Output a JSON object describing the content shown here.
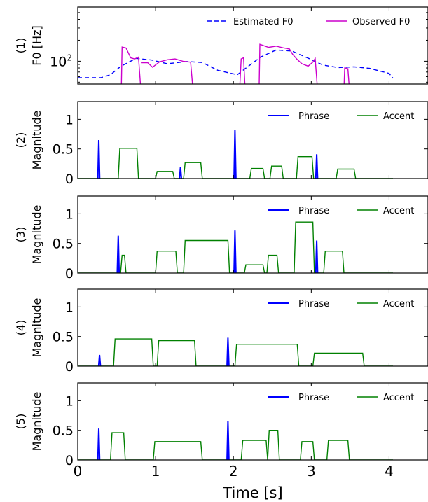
{
  "chart_data": [
    {
      "id": "p1",
      "type": "line",
      "ylabel": "(1)\nF0 [Hz]",
      "yscale": "log",
      "ylim": [
        47,
        600
      ],
      "yticks": [
        {
          "value": 100,
          "label": "10^2"
        }
      ],
      "xlim": [
        0,
        4.5
      ],
      "series": [
        {
          "name": "Estimated F0",
          "color": "#0000ff",
          "dash": true,
          "segments": [
            [
              [
                0.0,
                58
              ],
              [
                0.3,
                58
              ],
              [
                0.42,
                64
              ],
              [
                0.55,
                84
              ],
              [
                0.75,
                110
              ],
              [
                0.95,
                104
              ],
              [
                1.15,
                92
              ],
              [
                1.4,
                99
              ],
              [
                1.6,
                96
              ],
              [
                1.8,
                74
              ],
              [
                2.05,
                64
              ],
              [
                2.15,
                78
              ],
              [
                2.35,
                115
              ],
              [
                2.55,
                145
              ],
              [
                2.75,
                140
              ],
              [
                2.95,
                112
              ],
              [
                3.15,
                88
              ],
              [
                3.35,
                81
              ],
              [
                3.55,
                83
              ],
              [
                3.75,
                79
              ],
              [
                4.0,
                67
              ],
              [
                4.05,
                57
              ]
            ]
          ]
        },
        {
          "name": "Observed F0",
          "color": "#cc00cc",
          "dash": false,
          "segments": [
            [
              [
                0.56,
                40
              ],
              [
                0.57,
                160
              ],
              [
                0.62,
                155
              ],
              [
                0.68,
                112
              ],
              [
                0.73,
                108
              ],
              [
                0.78,
                115
              ],
              [
                0.81,
                40
              ]
            ],
            [
              [
                0.82,
                95
              ],
              [
                0.9,
                95
              ],
              [
                0.96,
                82
              ],
              [
                1.05,
                98
              ],
              [
                1.15,
                105
              ],
              [
                1.25,
                108
              ],
              [
                1.35,
                100
              ],
              [
                1.45,
                97
              ],
              [
                1.48,
                40
              ]
            ],
            [
              [
                2.08,
                40
              ],
              [
                2.1,
                108
              ],
              [
                2.13,
                112
              ],
              [
                2.15,
                40
              ]
            ],
            [
              [
                2.33,
                40
              ],
              [
                2.34,
                175
              ],
              [
                2.45,
                158
              ],
              [
                2.55,
                165
              ],
              [
                2.65,
                155
              ],
              [
                2.72,
                150
              ],
              [
                2.76,
                126
              ],
              [
                2.82,
                106
              ],
              [
                2.88,
                92
              ],
              [
                2.96,
                85
              ],
              [
                3.02,
                97
              ],
              [
                3.05,
                110
              ],
              [
                3.08,
                40
              ]
            ],
            [
              [
                3.42,
                40
              ],
              [
                3.43,
                80
              ],
              [
                3.47,
                78
              ],
              [
                3.49,
                40
              ]
            ]
          ]
        }
      ]
    },
    {
      "id": "p2",
      "type": "line",
      "ylabel": "(2)\nMagnitude",
      "ylim": [
        0,
        1.3
      ],
      "yticks": [
        {
          "value": 0,
          "label": "0"
        },
        {
          "value": 0.5,
          "label": "0.5"
        },
        {
          "value": 1,
          "label": "1"
        }
      ],
      "xlim": [
        0,
        4.5
      ],
      "phrase": [
        {
          "t": 0.27,
          "v": 0.65
        },
        {
          "t": 1.32,
          "v": 0.2
        },
        {
          "t": 2.02,
          "v": 0.82
        },
        {
          "t": 3.07,
          "v": 0.41
        }
      ],
      "accent": [
        {
          "t0": 0.52,
          "t1": 0.78,
          "v": 0.51
        },
        {
          "t0": 1.0,
          "t1": 1.24,
          "v": 0.12
        },
        {
          "t0": 1.36,
          "t1": 1.6,
          "v": 0.27
        },
        {
          "t0": 2.21,
          "t1": 2.4,
          "v": 0.17
        },
        {
          "t0": 2.47,
          "t1": 2.64,
          "v": 0.21
        },
        {
          "t0": 2.81,
          "t1": 3.03,
          "v": 0.37
        },
        {
          "t0": 3.32,
          "t1": 3.57,
          "v": 0.16
        }
      ],
      "legend": [
        "Phrase",
        "Accent"
      ]
    },
    {
      "id": "p3",
      "type": "line",
      "ylabel": "(3)\nMagnitude",
      "ylim": [
        0,
        1.3
      ],
      "yticks": [
        {
          "value": 0,
          "label": "0"
        },
        {
          "value": 0.5,
          "label": "0.5"
        },
        {
          "value": 1,
          "label": "1"
        }
      ],
      "xlim": [
        0,
        4.5
      ],
      "phrase": [
        {
          "t": 0.52,
          "v": 0.63
        },
        {
          "t": 2.02,
          "v": 0.72
        },
        {
          "t": 3.07,
          "v": 0.55
        }
      ],
      "accent": [
        {
          "t0": 0.55,
          "t1": 0.62,
          "v": 0.3
        },
        {
          "t0": 1.0,
          "t1": 1.28,
          "v": 0.37
        },
        {
          "t0": 1.36,
          "t1": 1.95,
          "v": 0.55
        },
        {
          "t0": 2.14,
          "t1": 2.4,
          "v": 0.14
        },
        {
          "t0": 2.43,
          "t1": 2.58,
          "v": 0.3
        },
        {
          "t0": 2.78,
          "t1": 3.04,
          "v": 0.86
        },
        {
          "t0": 3.16,
          "t1": 3.42,
          "v": 0.37
        }
      ],
      "legend": [
        "Phrase",
        "Accent"
      ]
    },
    {
      "id": "p4",
      "type": "line",
      "ylabel": "(4)\nMagnitude",
      "ylim": [
        0,
        1.3
      ],
      "yticks": [
        {
          "value": 0,
          "label": "0"
        },
        {
          "value": 0.5,
          "label": "0.5"
        },
        {
          "value": 1,
          "label": "1"
        }
      ],
      "xlim": [
        0,
        4.5
      ],
      "phrase": [
        {
          "t": 0.28,
          "v": 0.19
        },
        {
          "t": 1.93,
          "v": 0.48
        }
      ],
      "accent": [
        {
          "t0": 0.46,
          "t1": 0.97,
          "v": 0.46
        },
        {
          "t0": 1.02,
          "t1": 1.52,
          "v": 0.43
        },
        {
          "t0": 2.02,
          "t1": 2.84,
          "v": 0.37
        },
        {
          "t0": 3.02,
          "t1": 3.68,
          "v": 0.22
        }
      ],
      "legend": [
        "Phrase",
        "Accent"
      ]
    },
    {
      "id": "p5",
      "type": "line",
      "ylabel": "(5)\nMagnitude",
      "ylim": [
        0,
        1.3
      ],
      "yticks": [
        {
          "value": 0,
          "label": "0"
        },
        {
          "value": 0.5,
          "label": "0.5"
        },
        {
          "value": 1,
          "label": "1"
        }
      ],
      "xlim": [
        0,
        4.5
      ],
      "xticks": [
        0,
        1,
        2,
        3,
        4
      ],
      "xlabel": "Time [s]",
      "phrase": [
        {
          "t": 0.27,
          "v": 0.53
        },
        {
          "t": 1.93,
          "v": 0.66
        }
      ],
      "accent": [
        {
          "t0": 0.42,
          "t1": 0.61,
          "v": 0.46
        },
        {
          "t0": 0.97,
          "t1": 1.6,
          "v": 0.31
        },
        {
          "t0": 2.1,
          "t1": 2.44,
          "v": 0.33
        },
        {
          "t0": 2.44,
          "t1": 2.59,
          "v": 0.5
        },
        {
          "t0": 2.86,
          "t1": 3.04,
          "v": 0.31
        },
        {
          "t0": 3.2,
          "t1": 3.49,
          "v": 0.33
        }
      ],
      "legend": [
        "Phrase",
        "Accent"
      ]
    }
  ],
  "colors": {
    "phrase": "#0000ff",
    "accent": "#008000",
    "estimated": "#0000ff",
    "observed": "#cc00cc"
  },
  "legend_p1": [
    "Estimated F0",
    "Observed F0"
  ],
  "xlabel": "Time [s]"
}
